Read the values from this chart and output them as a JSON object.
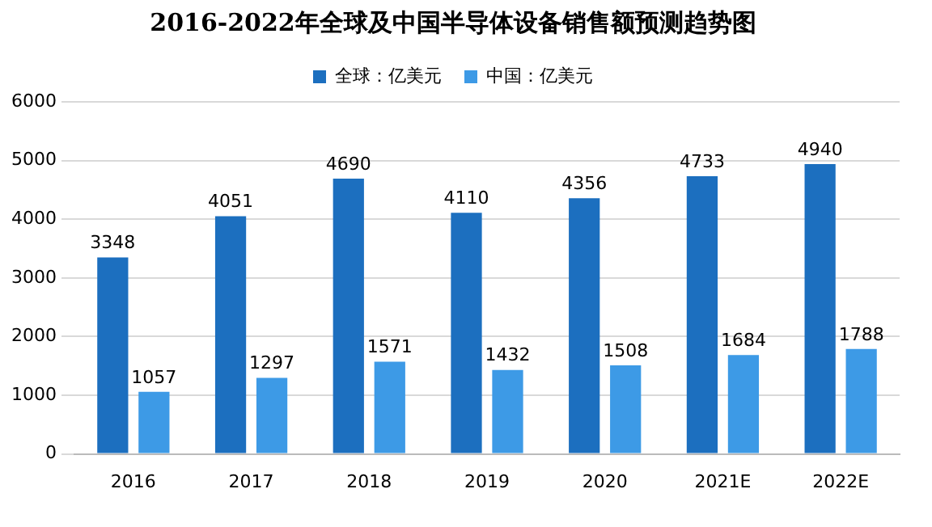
{
  "chart_data": {
    "type": "bar",
    "title": "2016-2022年全球及中国半导体设备销售额预测趋势图",
    "categories": [
      "2016",
      "2017",
      "2018",
      "2019",
      "2020",
      "2021E",
      "2022E"
    ],
    "series": [
      {
        "name": "全球：亿美元",
        "color": "#1c6fbf",
        "values": [
          3348,
          4051,
          4690,
          4110,
          4356,
          4733,
          4940
        ]
      },
      {
        "name": "中国：亿美元",
        "color": "#3d9ae6",
        "values": [
          1057,
          1297,
          1571,
          1432,
          1508,
          1684,
          1788
        ]
      }
    ],
    "ylim": [
      0,
      6000
    ],
    "yticks": [
      0,
      1000,
      2000,
      3000,
      4000,
      5000,
      6000
    ],
    "grid": "y",
    "legend": "top",
    "data_labels": true
  }
}
